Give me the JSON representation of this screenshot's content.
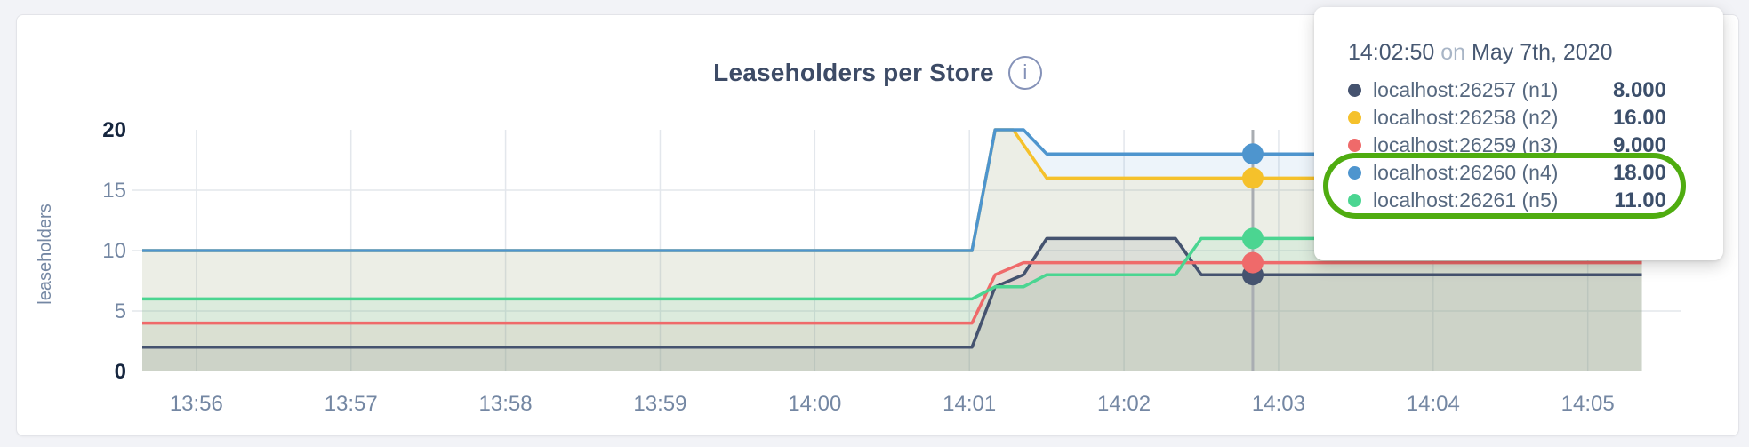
{
  "card": {
    "title": "Leaseholders per Store",
    "info_glyph": "i"
  },
  "chart_data": {
    "type": "line",
    "title": "Leaseholders per Store",
    "xlabel": "",
    "ylabel": "leaseholders",
    "ylim": [
      0,
      20
    ],
    "yticks": [
      0,
      5,
      10,
      15,
      20
    ],
    "x_unit": "seconds after 13:55:00",
    "x_range": [
      39,
      636
    ],
    "grid": true,
    "legend_position": "tooltip",
    "xticks": [
      {
        "t": 60,
        "label": "13:56"
      },
      {
        "t": 120,
        "label": "13:57"
      },
      {
        "t": 180,
        "label": "13:58"
      },
      {
        "t": 240,
        "label": "13:59"
      },
      {
        "t": 300,
        "label": "14:00"
      },
      {
        "t": 360,
        "label": "14:01"
      },
      {
        "t": 420,
        "label": "14:02"
      },
      {
        "t": 480,
        "label": "14:03"
      },
      {
        "t": 540,
        "label": "14:04"
      },
      {
        "t": 600,
        "label": "14:05"
      }
    ],
    "series": [
      {
        "name": "localhost:26257 (n1)",
        "color": "#45536F",
        "points": [
          [
            39,
            2
          ],
          [
            361,
            2
          ],
          [
            370,
            7
          ],
          [
            381,
            8
          ],
          [
            390,
            11
          ],
          [
            440,
            11
          ],
          [
            450,
            8
          ],
          [
            621,
            8
          ]
        ]
      },
      {
        "name": "localhost:26258 (n2)",
        "color": "#F5C12B",
        "points": [
          [
            39,
            10
          ],
          [
            361,
            10
          ],
          [
            370,
            20
          ],
          [
            377,
            20
          ],
          [
            390,
            16
          ],
          [
            621,
            16
          ]
        ]
      },
      {
        "name": "localhost:26259 (n3)",
        "color": "#EF6A6A",
        "points": [
          [
            39,
            4
          ],
          [
            361,
            4
          ],
          [
            370,
            8
          ],
          [
            381,
            9
          ],
          [
            621,
            9
          ]
        ]
      },
      {
        "name": "localhost:26260 (n4)",
        "color": "#4E95CE",
        "points": [
          [
            39,
            10
          ],
          [
            361,
            10
          ],
          [
            370,
            20
          ],
          [
            381,
            20
          ],
          [
            390,
            18
          ],
          [
            621,
            18
          ]
        ]
      },
      {
        "name": "localhost:26261 (n5)",
        "color": "#4BD591",
        "points": [
          [
            39,
            6
          ],
          [
            361,
            6
          ],
          [
            370,
            7
          ],
          [
            381,
            7
          ],
          [
            390,
            8
          ],
          [
            440,
            8
          ],
          [
            450,
            11
          ],
          [
            621,
            11
          ]
        ]
      }
    ],
    "hover": {
      "t": 470,
      "time_label": "14:02:50",
      "values": [
        8,
        16,
        9,
        18,
        11
      ]
    },
    "colors": {
      "grid": "#E3E7EC",
      "crosshair": "#A9ADB2",
      "tick": "#7487A3",
      "tick_strong": "#16263F",
      "fill_opacity": 0.1
    }
  },
  "tooltip": {
    "time": "14:02:50",
    "on": "on",
    "date": "May 7th, 2020",
    "rows": [
      {
        "label": "localhost:26257 (n1)",
        "value": "8.000"
      },
      {
        "label": "localhost:26258 (n2)",
        "value": "16.00"
      },
      {
        "label": "localhost:26259 (n3)",
        "value": "9.000"
      },
      {
        "label": "localhost:26260 (n4)",
        "value": "18.00"
      },
      {
        "label": "localhost:26261 (n5)",
        "value": "11.00"
      }
    ],
    "highlight": {
      "rows": [
        "localhost:26260 (n4)",
        "localhost:26261 (n5)"
      ],
      "color": "#4FAC10"
    }
  }
}
